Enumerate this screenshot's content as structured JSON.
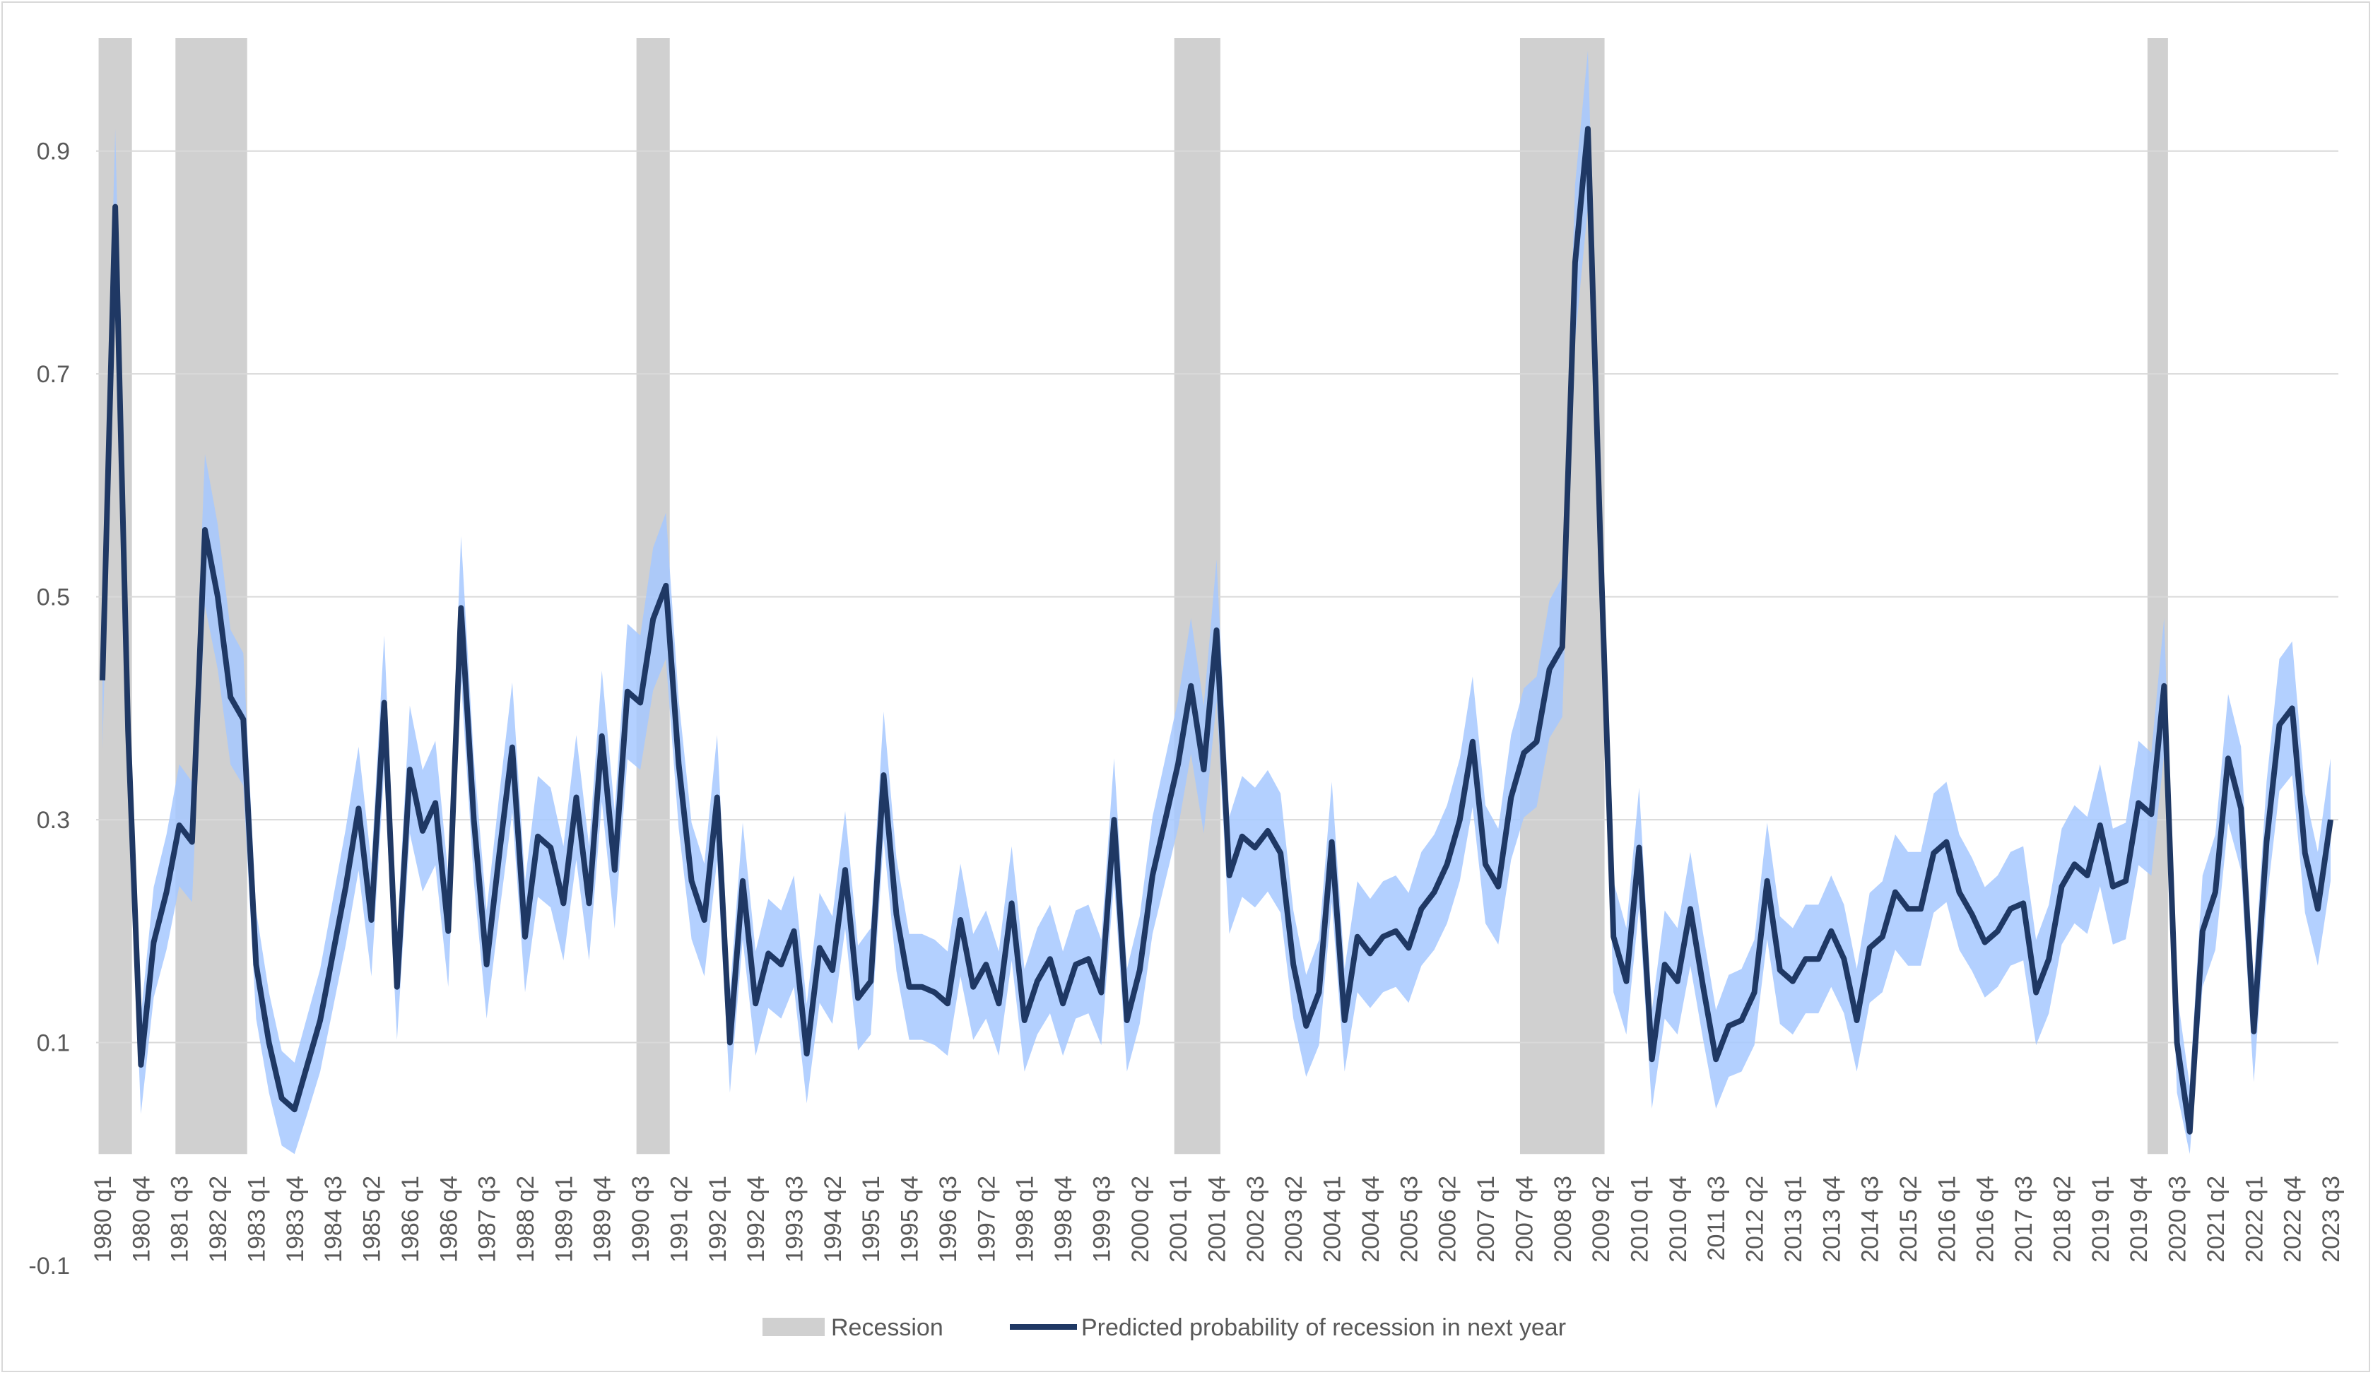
{
  "chart_data": {
    "type": "line",
    "y_ticks": [
      "-0.1",
      "0.1",
      "0.3",
      "0.5",
      "0.7",
      "0.9"
    ],
    "y_tick_values": [
      -0.1,
      0.1,
      0.3,
      0.5,
      0.7,
      0.9
    ],
    "ylim": [
      -0.1,
      1.0
    ],
    "grid": "horizontal",
    "legend_position": "bottom",
    "x_tick_labels": [
      "1980 q1",
      "1980 q4",
      "1981 q3",
      "1982 q2",
      "1983 q1",
      "1983 q4",
      "1984 q3",
      "1985 q2",
      "1986 q1",
      "1986 q4",
      "1987 q3",
      "1988 q2",
      "1989 q1",
      "1989 q4",
      "1990 q3",
      "1991 q2",
      "1992 q1",
      "1992 q4",
      "1993 q3",
      "1994 q2",
      "1995 q1",
      "1995 q4",
      "1996 q3",
      "1997 q2",
      "1998 q1",
      "1998 q4",
      "1999 q3",
      "2000 q2",
      "2001 q1",
      "2001 q4",
      "2002 q3",
      "2003 q2",
      "2004 q1",
      "2004 q4",
      "2005 q3",
      "2006 q2",
      "2007 q1",
      "2007 q4",
      "2008 q3",
      "2009 q2",
      "2010 q1",
      "2010 q4",
      "2011 q3",
      "2012 q2",
      "2013 q1",
      "2013 q4",
      "2014 q3",
      "2015 q2",
      "2016 q1",
      "2016 q4",
      "2017 q3",
      "2018 q2",
      "2019 q1",
      "2019 q4",
      "2020 q3",
      "2021 q2",
      "2022 q1",
      "2022 q4",
      "2023 q3"
    ],
    "x_start": "1980 q1",
    "recessions": [
      {
        "start": "1980 q1",
        "end": "1980 q3"
      },
      {
        "start": "1981 q3",
        "end": "1982 q4"
      },
      {
        "start": "1990 q3",
        "end": "1991 q1"
      },
      {
        "start": "2001 q1",
        "end": "2001 q4"
      },
      {
        "start": "2007 q4",
        "end": "2009 q2"
      },
      {
        "start": "2020 q1",
        "end": "2020 q2"
      }
    ],
    "series": [
      {
        "name": "Predicted probability of recession in next year",
        "color": "#1f3864",
        "values": [
          0.425,
          0.85,
          0.38,
          0.08,
          0.19,
          0.235,
          0.295,
          0.28,
          0.56,
          0.5,
          0.41,
          0.39,
          0.17,
          0.1,
          0.05,
          0.04,
          0.08,
          0.12,
          0.18,
          0.24,
          0.31,
          0.21,
          0.405,
          0.15,
          0.345,
          0.29,
          0.315,
          0.2,
          0.49,
          0.3,
          0.17,
          0.27,
          0.365,
          0.195,
          0.285,
          0.275,
          0.225,
          0.32,
          0.225,
          0.375,
          0.255,
          0.415,
          0.405,
          0.48,
          0.51,
          0.35,
          0.245,
          0.21,
          0.32,
          0.1,
          0.245,
          0.135,
          0.18,
          0.17,
          0.2,
          0.09,
          0.185,
          0.165,
          0.255,
          0.14,
          0.155,
          0.34,
          0.215,
          0.15,
          0.15,
          0.145,
          0.135,
          0.21,
          0.15,
          0.17,
          0.135,
          0.225,
          0.12,
          0.155,
          0.175,
          0.135,
          0.17,
          0.175,
          0.145,
          0.3,
          0.12,
          0.165,
          0.25,
          0.3,
          0.35,
          0.42,
          0.345,
          0.47,
          0.25,
          0.285,
          0.275,
          0.29,
          0.27,
          0.17,
          0.115,
          0.145,
          0.28,
          0.12,
          0.195,
          0.18,
          0.195,
          0.2,
          0.185,
          0.22,
          0.235,
          0.26,
          0.3,
          0.37,
          0.26,
          0.24,
          0.32,
          0.36,
          0.37,
          0.435,
          0.455,
          0.8,
          0.92,
          0.54,
          0.195,
          0.155,
          0.275,
          0.085,
          0.17,
          0.155,
          0.22,
          0.15,
          0.085,
          0.115,
          0.12,
          0.145,
          0.245,
          0.165,
          0.155,
          0.175,
          0.175,
          0.2,
          0.175,
          0.12,
          0.185,
          0.195,
          0.235,
          0.22,
          0.22,
          0.27,
          0.28,
          0.235,
          0.215,
          0.19,
          0.2,
          0.22,
          0.225,
          0.145,
          0.175,
          0.24,
          0.26,
          0.25,
          0.295,
          0.24,
          0.245,
          0.315,
          0.305,
          0.42,
          0.1,
          0.02,
          0.2,
          0.235,
          0.355,
          0.31,
          0.11,
          0.28,
          0.385,
          0.4,
          0.27,
          0.22,
          0.3
        ]
      }
    ],
    "band": {
      "name": "Uncertainty band",
      "color": "#a6c8ff",
      "half_width": 0.05
    },
    "legend": [
      {
        "label": "Recession",
        "color": "#d0d0d0"
      },
      {
        "label": "Predicted probability of recession in next year",
        "color": "#1f3864"
      }
    ]
  }
}
